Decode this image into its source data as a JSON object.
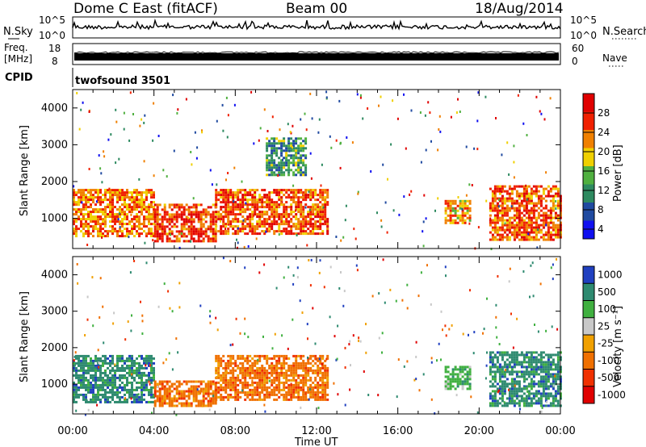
{
  "header": {
    "station": "Dome C East (fitACF)",
    "beam": "Beam 00",
    "date": "18/Aug/2014"
  },
  "chart_data": [
    {
      "panel": "noise",
      "type": "line",
      "left_label": "N.Sky",
      "right_label": "N.Search",
      "left_ticks": [
        "10^5",
        "10^0"
      ],
      "right_ticks": [
        "10^5",
        "10^0"
      ]
    },
    {
      "panel": "freq-nave",
      "type": "line",
      "left_label_top": "Freq.",
      "left_label_bottom": "[MHz]",
      "right_label": "Nave",
      "left_ticks": [
        "18",
        "8"
      ],
      "right_ticks": [
        "60",
        "0"
      ]
    },
    {
      "panel": "cpid",
      "type": "table",
      "label": "CPID",
      "value": "twofsound 3501"
    },
    {
      "panel": "power",
      "type": "heatmap",
      "ylabel": "Slant Range [km]",
      "ylim": [
        180,
        4500
      ],
      "yticks": [
        "1000",
        "2000",
        "3000",
        "4000"
      ],
      "xlim": [
        "00:00",
        "24:00"
      ],
      "colorbar_label": "Power [dB]",
      "colorbar_ticks": [
        "28",
        "24",
        "20",
        "16",
        "12",
        "8",
        "4"
      ],
      "colorbar_range": [
        0,
        30
      ],
      "colors": [
        "#1010f0",
        "#204aa0",
        "#2e8a60",
        "#50b040",
        "#f0d000",
        "#f08000",
        "#f02000",
        "#e00000"
      ],
      "echo_regions": [
        {
          "t0": 0.0,
          "t1": 4.0,
          "r0": 500,
          "r1": 1800,
          "value": 22
        },
        {
          "t0": 4.0,
          "t1": 7.0,
          "r0": 400,
          "r1": 1400,
          "value": 25
        },
        {
          "t0": 7.0,
          "t1": 12.5,
          "r0": 600,
          "r1": 1800,
          "value": 24
        },
        {
          "t0": 9.5,
          "t1": 11.5,
          "r0": 2200,
          "r1": 3200,
          "value": 10
        },
        {
          "t0": 18.3,
          "t1": 19.5,
          "r0": 900,
          "r1": 1500,
          "value": 20
        },
        {
          "t0": 20.5,
          "t1": 24.0,
          "r0": 400,
          "r1": 1900,
          "value": 24
        }
      ]
    },
    {
      "panel": "velocity",
      "type": "heatmap",
      "ylabel": "Slant Range [km]",
      "ylim": [
        180,
        4500
      ],
      "yticks": [
        "1000",
        "2000",
        "3000",
        "4000"
      ],
      "xlabel": "Time UT",
      "xticks": [
        "00:00",
        "04:00",
        "08:00",
        "12:00",
        "16:00",
        "20:00",
        "00:00"
      ],
      "colorbar_label": "Velocity [m s⁻¹]",
      "colorbar_ticks": [
        "1000",
        "500",
        "100",
        "25",
        "-25",
        "-100",
        "-500",
        "-1000"
      ],
      "colors": [
        "#2040c0",
        "#2e8a70",
        "#40b040",
        "#c8c8c8",
        "#f0a000",
        "#f07000",
        "#f03000",
        "#e00000"
      ],
      "echo_regions": [
        {
          "t0": 0.0,
          "t1": 4.0,
          "r0": 500,
          "r1": 1800,
          "value": 150
        },
        {
          "t0": 4.0,
          "t1": 7.0,
          "r0": 400,
          "r1": 1100,
          "value": -150
        },
        {
          "t0": 7.0,
          "t1": 12.5,
          "r0": 600,
          "r1": 1800,
          "value": -200
        },
        {
          "t0": 18.3,
          "t1": 19.5,
          "r0": 900,
          "r1": 1500,
          "value": 80
        },
        {
          "t0": 20.5,
          "t1": 24.0,
          "r0": 400,
          "r1": 1900,
          "value": 120
        }
      ]
    }
  ]
}
